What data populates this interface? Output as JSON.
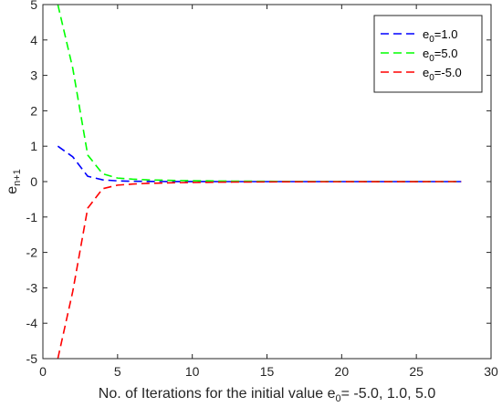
{
  "chart_data": {
    "type": "line",
    "xlabel": "No. of Iterations for the initial value e",
    "xlabel_sub": "0",
    "xlabel_tail": "= -5.0, 1.0, 5.0",
    "ylabel": "e",
    "ylabel_sub": "n+1",
    "xlim": [
      0,
      30
    ],
    "ylim": [
      -5,
      5
    ],
    "xticks": [
      "0",
      "5",
      "10",
      "15",
      "20",
      "25",
      "30"
    ],
    "yticks": [
      "5",
      "4",
      "3",
      "2",
      "1",
      "0",
      "-1",
      "-2",
      "-3",
      "-4",
      "-5"
    ],
    "grid": false,
    "legend_position": "top-right",
    "series": [
      {
        "name_prefix": "e",
        "name_sub": "0",
        "name_tail": "=1.0",
        "color": "#0000ff",
        "x": [
          1,
          2,
          3,
          4,
          5,
          6,
          7,
          8,
          9,
          10,
          11,
          12,
          13,
          14,
          15,
          16,
          17,
          18,
          19,
          20,
          21,
          22,
          23,
          24,
          25,
          26,
          27,
          28
        ],
        "y": [
          1.0,
          0.7,
          0.15,
          0.05,
          0.02,
          0.01,
          0.005,
          0.003,
          0.002,
          0.001,
          0.001,
          0,
          0,
          0,
          0,
          0,
          0,
          0,
          0,
          0,
          0,
          0,
          0,
          0,
          0,
          0,
          0,
          0
        ]
      },
      {
        "name_prefix": "e",
        "name_sub": "0",
        "name_tail": "=5.0",
        "color": "#00ff00",
        "x": [
          1,
          2,
          3,
          4,
          5,
          6,
          7,
          8,
          9,
          10,
          11,
          12,
          13,
          14,
          15,
          16,
          17,
          18,
          19,
          20,
          21,
          22,
          23,
          24,
          25,
          26,
          27,
          28
        ],
        "y": [
          5.0,
          3.2,
          0.75,
          0.22,
          0.1,
          0.07,
          0.05,
          0.04,
          0.03,
          0.025,
          0.02,
          0.015,
          0.012,
          0.01,
          0.008,
          0.006,
          0.005,
          0.004,
          0.003,
          0.003,
          0.002,
          0.002,
          0.001,
          0.001,
          0.001,
          0,
          0,
          0
        ]
      },
      {
        "name_prefix": "e",
        "name_sub": "0",
        "name_tail": "=-5.0",
        "color": "#ff0000",
        "x": [
          1,
          2,
          3,
          4,
          5,
          6,
          7,
          8,
          9,
          10,
          11,
          12,
          13,
          14,
          15,
          16,
          17,
          18,
          19,
          20,
          21,
          22,
          23,
          24,
          25,
          26,
          27,
          28
        ],
        "y": [
          -5.0,
          -3.1,
          -0.75,
          -0.2,
          -0.1,
          -0.07,
          -0.05,
          -0.04,
          -0.03,
          -0.025,
          -0.02,
          -0.015,
          -0.012,
          -0.01,
          -0.008,
          -0.006,
          -0.005,
          -0.004,
          -0.003,
          -0.003,
          -0.002,
          -0.002,
          -0.001,
          -0.001,
          -0.001,
          0,
          0,
          0
        ]
      }
    ]
  }
}
